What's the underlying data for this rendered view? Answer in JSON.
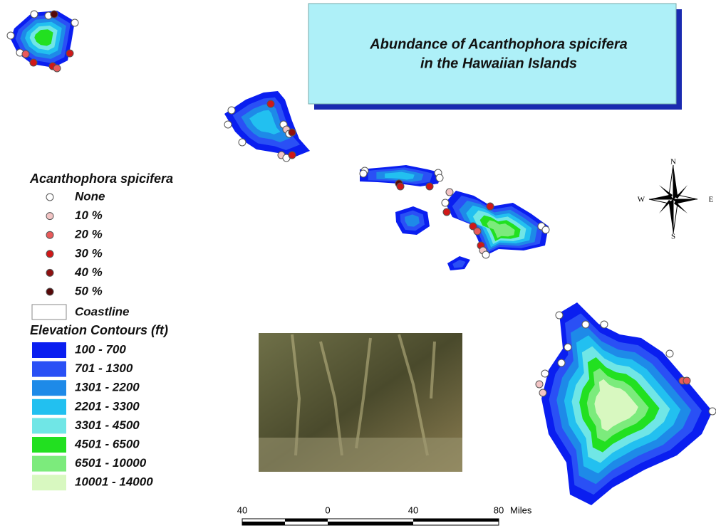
{
  "title": {
    "lines": [
      "Abundance of Acanthophora spicifera",
      "in the Hawaiian Islands"
    ]
  },
  "legend": {
    "abundance_title": "Acanthophora spicifera",
    "abundance": [
      {
        "label": "None",
        "color": "#ffffff"
      },
      {
        "label": "10 %",
        "color": "#f2c4c4"
      },
      {
        "label": "20 %",
        "color": "#e85a5a"
      },
      {
        "label": "30 %",
        "color": "#d01818"
      },
      {
        "label": "40 %",
        "color": "#8e1010"
      },
      {
        "label": "50 %",
        "color": "#560808"
      }
    ],
    "coastline": "Coastline",
    "elevation_title": "Elevation Contours (ft)",
    "elevation": [
      {
        "label": "100 - 700",
        "color": "#0a1ef0"
      },
      {
        "label": "701 - 1300",
        "color": "#2a50f5"
      },
      {
        "label": "1301 - 2200",
        "color": "#1e8ae8"
      },
      {
        "label": "2201 - 3300",
        "color": "#22c0f0"
      },
      {
        "label": "3301 - 4500",
        "color": "#70e6e6"
      },
      {
        "label": "4501 - 6500",
        "color": "#22e020"
      },
      {
        "label": "6501 - 10000",
        "color": "#7ceb7c"
      },
      {
        "label": "10001 - 14000",
        "color": "#d8f8c0"
      }
    ]
  },
  "compass": {
    "n": "N",
    "s": "S",
    "e": "E",
    "w": "W"
  },
  "scale_bar": {
    "ticks": [
      "40",
      "0",
      "40",
      "80"
    ],
    "unit": "Miles"
  }
}
